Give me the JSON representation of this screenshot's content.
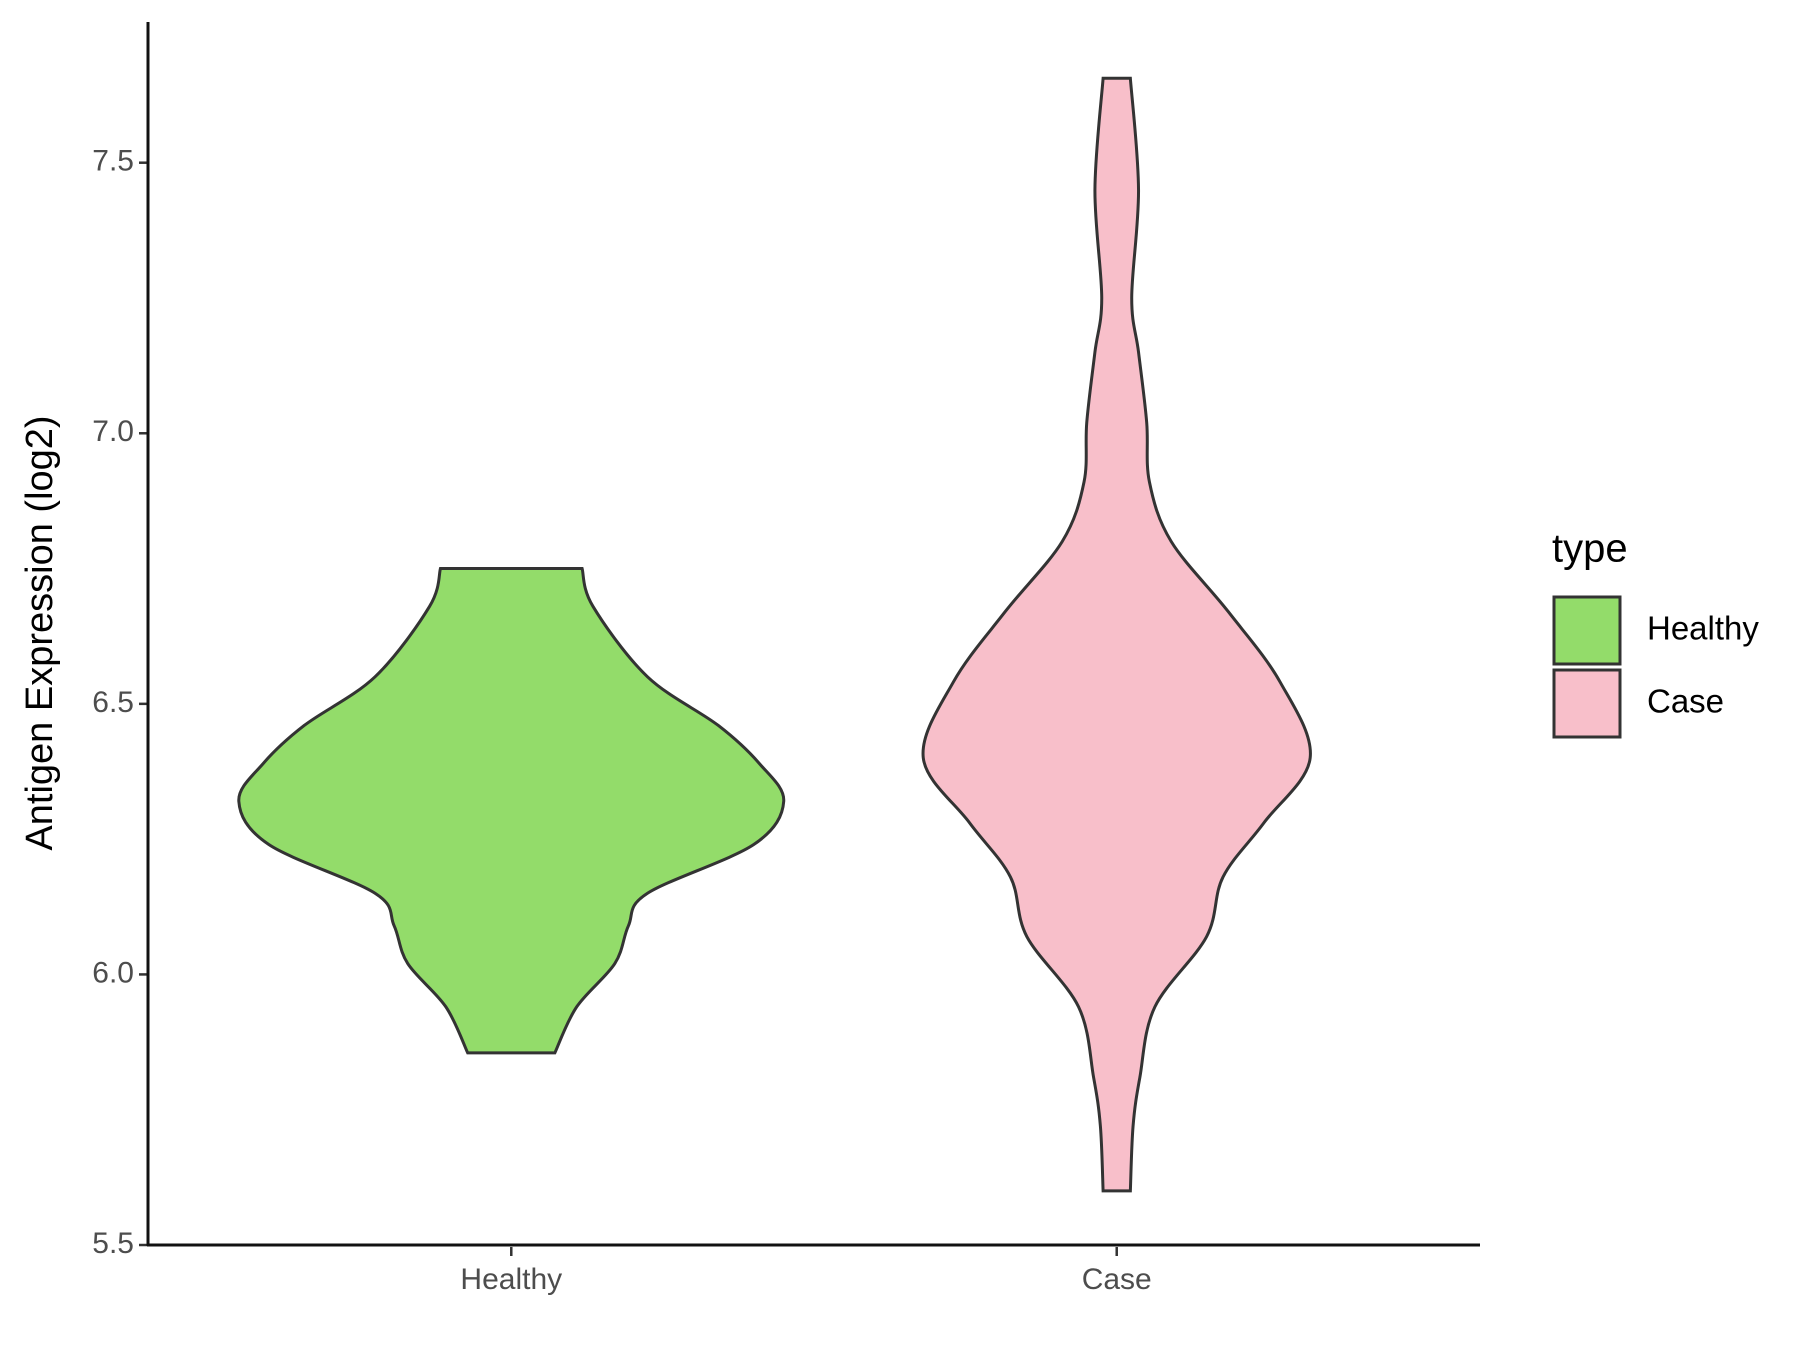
{
  "chart_data": {
    "type": "violin",
    "categories": [
      "Healthy",
      "Case"
    ],
    "y_label": "Antigen Expression (log2)",
    "ylim": [
      5.5,
      7.76
    ],
    "yticks": [
      5.5,
      {
        "value": 6,
        "label": "6.0"
      },
      6.5,
      {
        "value": 7,
        "label": "7.0"
      },
      7.5
    ],
    "legend_title": "type",
    "legend_position": "right",
    "series": [
      {
        "name": "Healthy",
        "color": "#93dc6a",
        "y": [
          6.75,
          6.68,
          6.55,
          6.46,
          6.39,
          6.32,
          6.24,
          6.15,
          6.09,
          6.02,
          5.94,
          5.855
        ],
        "width": [
          0.26,
          0.3,
          0.5,
          0.76,
          0.91,
          1.0,
          0.89,
          0.5,
          0.43,
          0.38,
          0.24,
          0.16
        ]
      },
      {
        "name": "Case",
        "color": "#f8bfca",
        "y": [
          7.656,
          7.45,
          7.25,
          7.15,
          7.02,
          6.91,
          6.8,
          6.67,
          6.54,
          6.4,
          6.28,
          6.18,
          6.07,
          5.94,
          5.81,
          5.72,
          5.6
        ],
        "width": [
          0.05,
          0.08,
          0.055,
          0.08,
          0.11,
          0.12,
          0.2,
          0.41,
          0.6,
          0.71,
          0.54,
          0.39,
          0.33,
          0.14,
          0.085,
          0.06,
          0.05
        ]
      }
    ]
  }
}
